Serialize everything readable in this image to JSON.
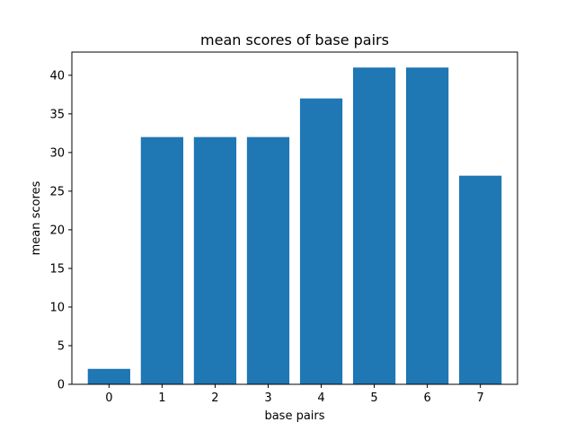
{
  "chart_data": {
    "type": "bar",
    "title": "mean scores of base pairs",
    "xlabel": "base pairs",
    "ylabel": "mean scores",
    "categories": [
      "0",
      "1",
      "2",
      "3",
      "4",
      "5",
      "6",
      "7"
    ],
    "values": [
      2,
      32,
      32,
      32,
      37,
      41,
      41,
      27
    ],
    "ylim": [
      0,
      43
    ],
    "yticks": [
      0,
      5,
      10,
      15,
      20,
      25,
      30,
      35,
      40
    ],
    "bar_color": "#1f77b4",
    "grid": false
  }
}
